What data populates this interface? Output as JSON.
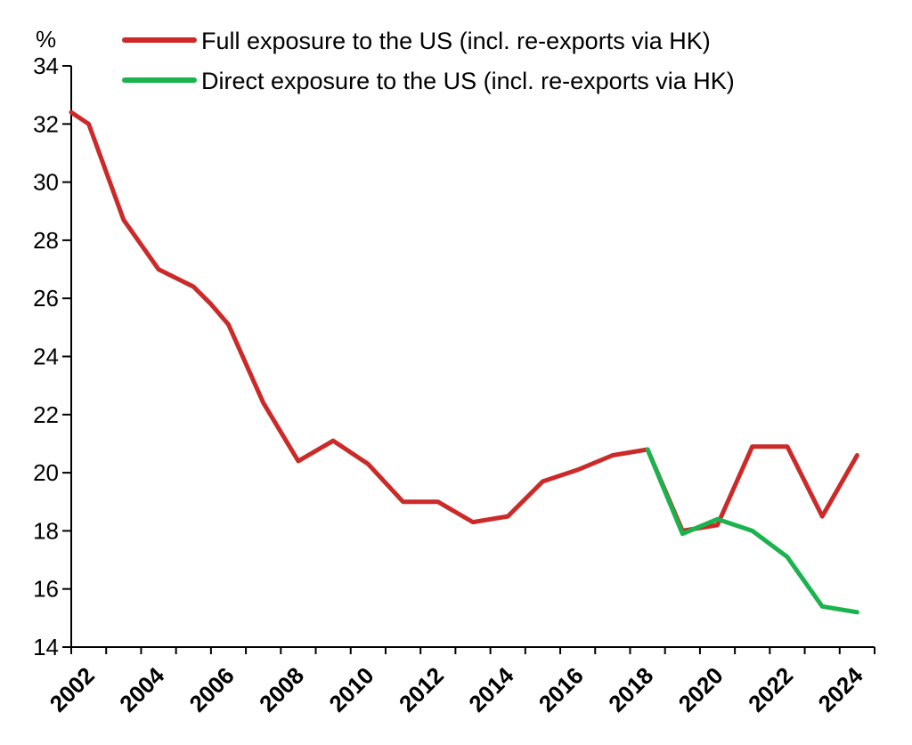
{
  "chart_data": {
    "type": "line",
    "title": "",
    "xlabel": "",
    "ylabel": "%",
    "ylim": [
      14,
      34
    ],
    "yticks": [
      "14",
      "16",
      "18",
      "20",
      "22",
      "24",
      "26",
      "28",
      "30",
      "32",
      "34"
    ],
    "xlim": [
      2002,
      2025
    ],
    "xticks": [
      "2002",
      "2004",
      "2006",
      "2008",
      "2010",
      "2012",
      "2014",
      "2016",
      "2018",
      "2020",
      "2022",
      "2024"
    ],
    "grid": false,
    "legend_position": "top",
    "series": [
      {
        "name": "Full exposure to the US (incl. re-exports via HK)",
        "color": "#cc2929",
        "x": [
          2002.0,
          2002.5,
          2003.5,
          2004.5,
          2005.5,
          2006.0,
          2006.5,
          2007.5,
          2008.5,
          2009.5,
          2010.5,
          2011.5,
          2012.5,
          2013.5,
          2014.5,
          2015.5,
          2016.5,
          2017.5,
          2018.5,
          2019.5,
          2020.5,
          2021.5,
          2022.5,
          2023.5,
          2024.5
        ],
        "values": [
          32.4,
          32.0,
          28.7,
          27.0,
          26.4,
          25.8,
          25.1,
          22.4,
          20.4,
          21.1,
          20.3,
          19.0,
          19.0,
          18.3,
          18.5,
          19.7,
          20.1,
          20.6,
          20.8,
          18.0,
          18.2,
          20.9,
          20.9,
          18.5,
          20.6
        ]
      },
      {
        "name": "Direct exposure to the US (incl. re-exports via HK)",
        "color": "#1ab34d",
        "x": [
          2018.5,
          2019.5,
          2020.5,
          2021.5,
          2022.5,
          2023.5,
          2024.5
        ],
        "values": [
          20.8,
          17.9,
          18.4,
          18.0,
          17.1,
          15.4,
          15.2
        ]
      }
    ]
  }
}
